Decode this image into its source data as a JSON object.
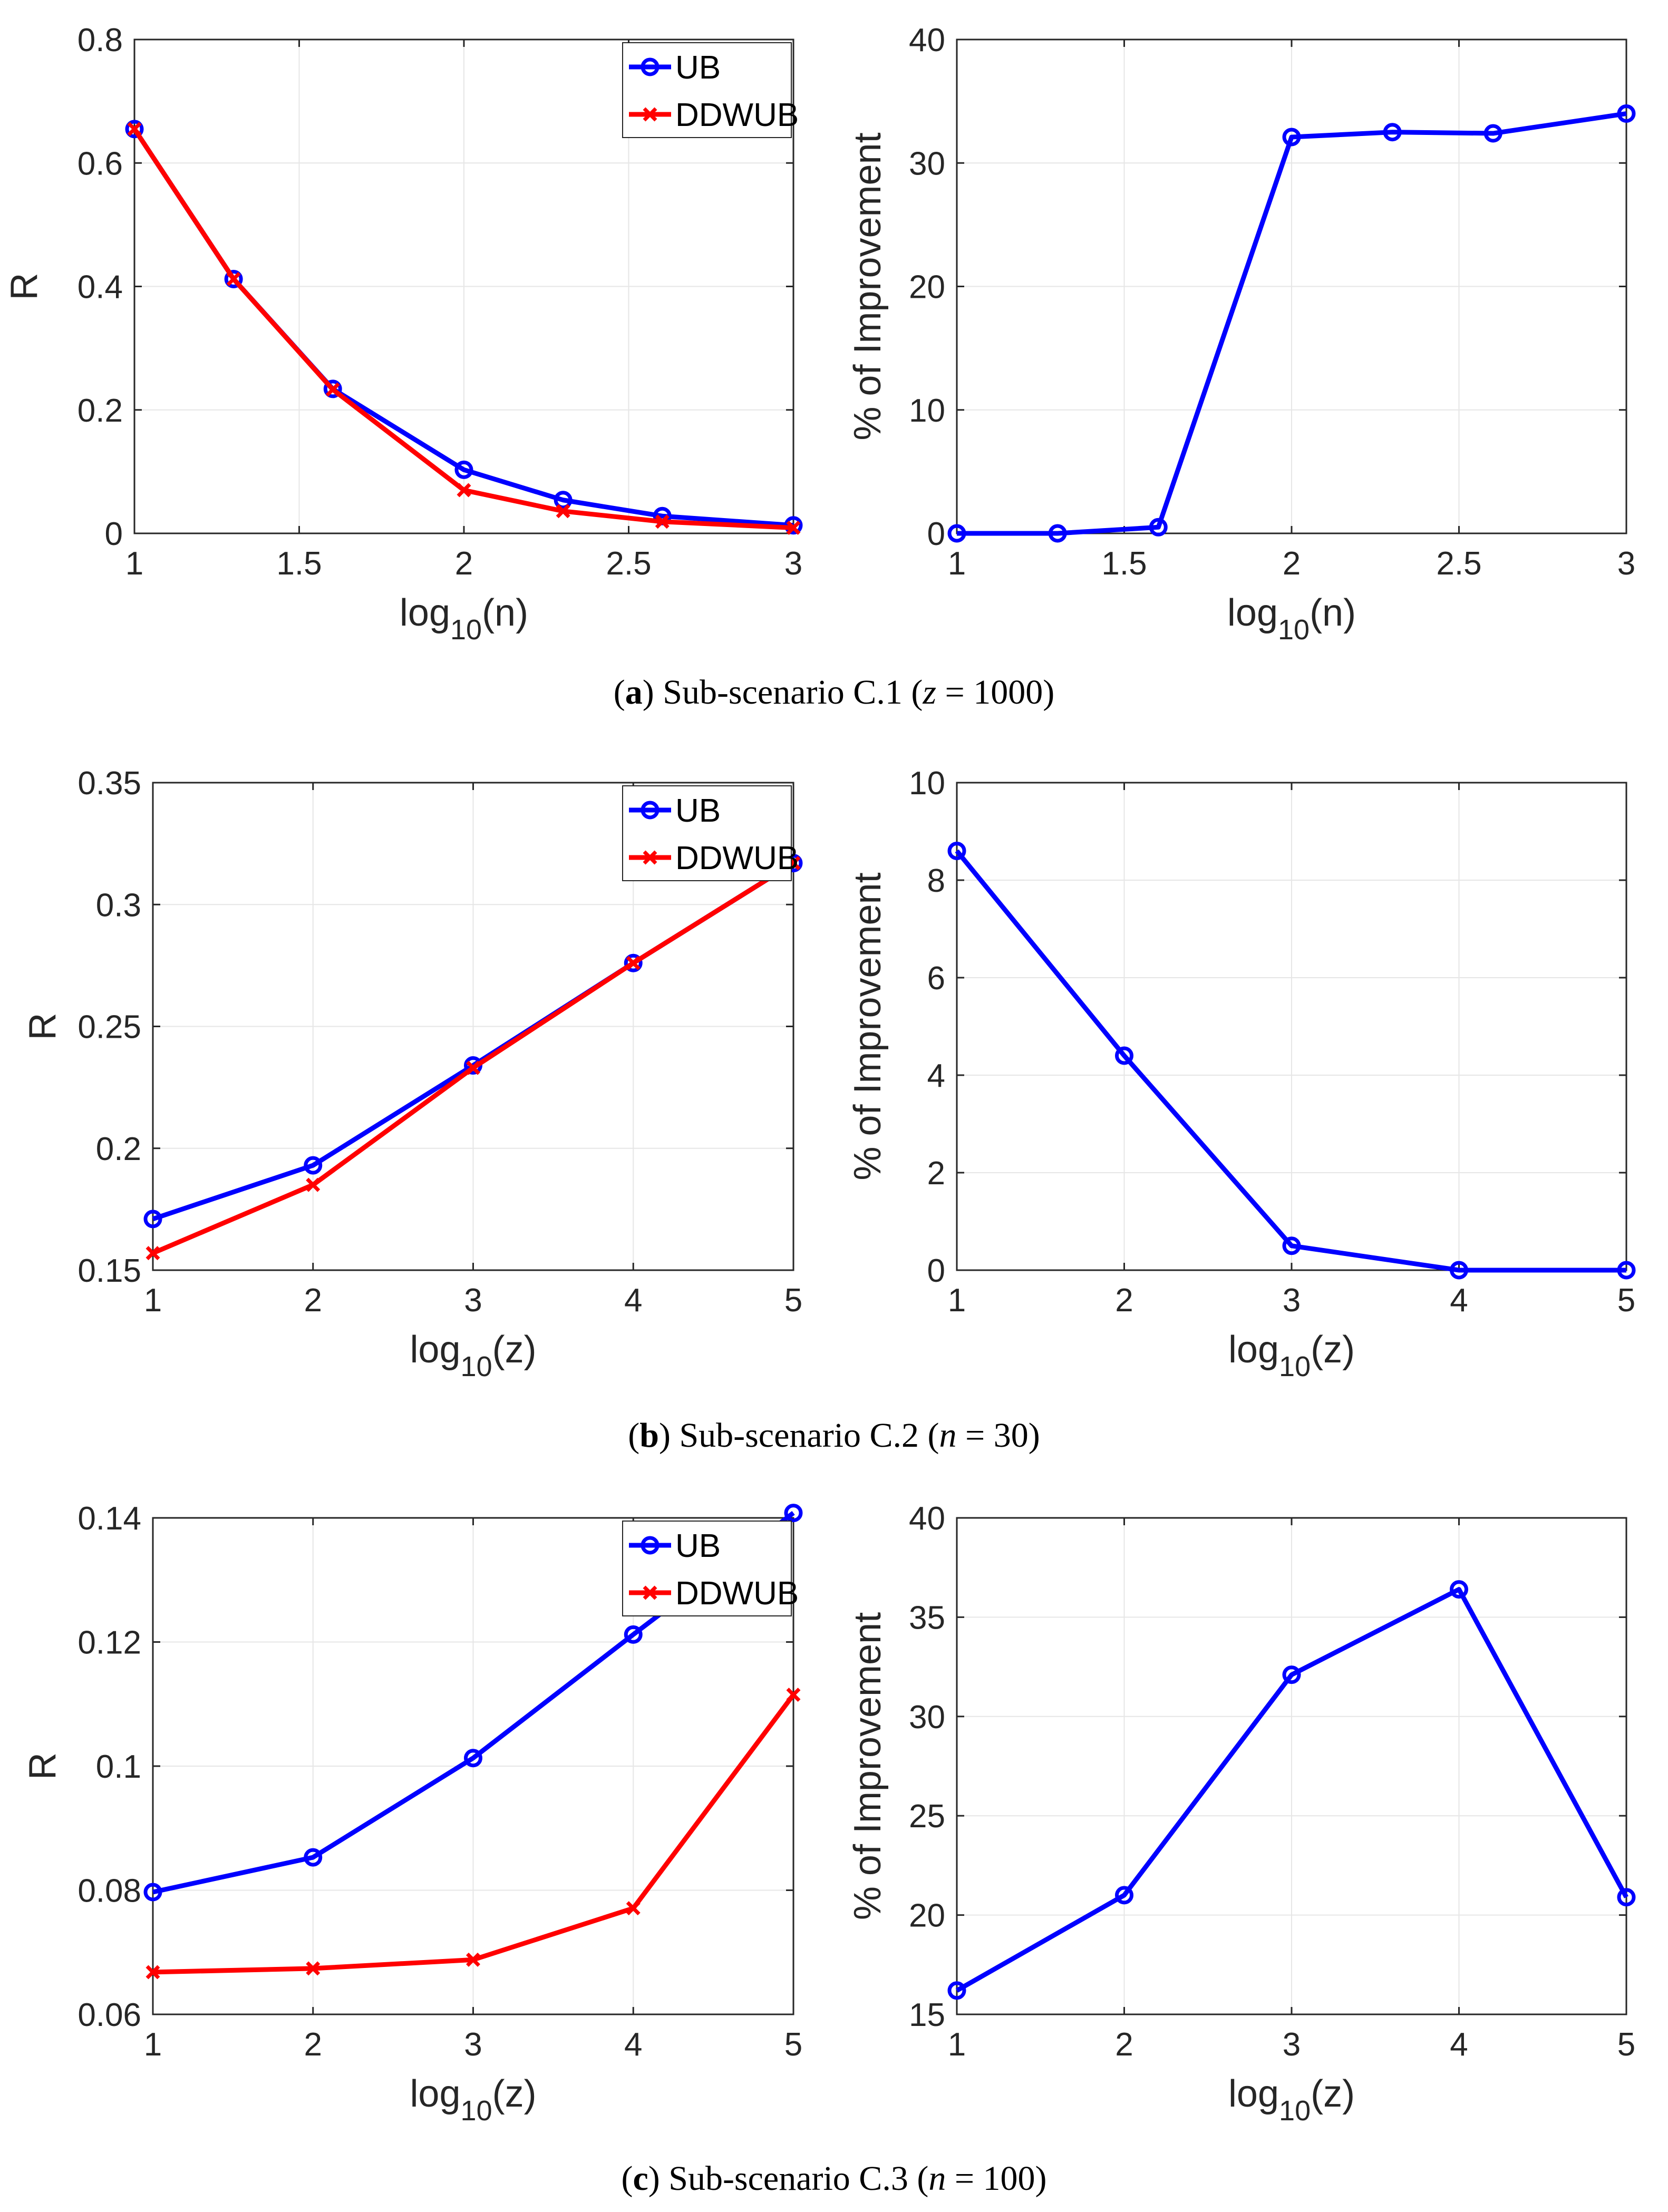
{
  "figure": {
    "captions": [
      {
        "letter": "a",
        "text": "Sub-scenario C.1",
        "var": "z",
        "value": "1000"
      },
      {
        "letter": "b",
        "text": "Sub-scenario C.2",
        "var": "n",
        "value": "30"
      },
      {
        "letter": "c",
        "text": "Sub-scenario C.3",
        "var": "n",
        "value": "100"
      }
    ]
  },
  "colors": {
    "ub": "#0000ff",
    "ddwub": "#ff0000",
    "axis": "#262626",
    "grid": "#e6e6e6"
  },
  "chart_data": [
    {
      "id": "a-left",
      "type": "line",
      "ylabel": "R",
      "xlabel": {
        "base": "log",
        "sub": "10",
        "arg": "(n)"
      },
      "xlim": [
        1,
        3
      ],
      "ylim": [
        0,
        0.8
      ],
      "xticks": [
        1,
        1.5,
        2,
        2.5,
        3
      ],
      "xtick_labels": [
        "1",
        "1.5",
        "2",
        "2.5",
        "3"
      ],
      "yticks": [
        0,
        0.2,
        0.4,
        0.6,
        0.8
      ],
      "ytick_labels": [
        "0",
        "0.2",
        "0.4",
        "0.6",
        "0.8"
      ],
      "legend": {
        "position": "top-right",
        "entries": [
          "UB",
          "DDWUB"
        ]
      },
      "series": [
        {
          "name": "UB",
          "marker": "circle",
          "x": [
            1,
            1.301,
            1.602,
            2,
            2.301,
            2.602,
            3
          ],
          "y": [
            0.655,
            0.412,
            0.234,
            0.103,
            0.054,
            0.028,
            0.013
          ]
        },
        {
          "name": "DDWUB",
          "marker": "x",
          "x": [
            1,
            1.301,
            1.602,
            2,
            2.301,
            2.602,
            3
          ],
          "y": [
            0.655,
            0.412,
            0.233,
            0.07,
            0.036,
            0.019,
            0.009
          ]
        }
      ]
    },
    {
      "id": "a-right",
      "type": "line",
      "ylabel": "% of Improvement",
      "xlabel": {
        "base": "log",
        "sub": "10",
        "arg": "(n)"
      },
      "xlim": [
        1,
        3
      ],
      "ylim": [
        0,
        40
      ],
      "xticks": [
        1,
        1.5,
        2,
        2.5,
        3
      ],
      "xtick_labels": [
        "1",
        "1.5",
        "2",
        "2.5",
        "3"
      ],
      "yticks": [
        0,
        10,
        20,
        30,
        40
      ],
      "ytick_labels": [
        "0",
        "10",
        "20",
        "30",
        "40"
      ],
      "series": [
        {
          "name": "Improvement",
          "marker": "circle",
          "x": [
            1,
            1.301,
            1.602,
            2,
            2.301,
            2.602,
            3
          ],
          "y": [
            0,
            0,
            0.5,
            32.1,
            32.5,
            32.4,
            34.0
          ]
        }
      ]
    },
    {
      "id": "b-left",
      "type": "line",
      "ylabel": "R",
      "xlabel": {
        "base": "log",
        "sub": "10",
        "arg": "(z)"
      },
      "xlim": [
        1,
        5
      ],
      "ylim": [
        0.15,
        0.35
      ],
      "xticks": [
        1,
        2,
        3,
        4,
        5
      ],
      "xtick_labels": [
        "1",
        "2",
        "3",
        "4",
        "5"
      ],
      "yticks": [
        0.15,
        0.2,
        0.25,
        0.3,
        0.35
      ],
      "ytick_labels": [
        "0.15",
        "0.2",
        "0.25",
        "0.3",
        "0.35"
      ],
      "legend": {
        "position": "top-right",
        "entries": [
          "UB",
          "DDWUB"
        ]
      },
      "series": [
        {
          "name": "UB",
          "marker": "circle",
          "x": [
            1,
            2,
            3,
            4,
            5
          ],
          "y": [
            0.171,
            0.193,
            0.234,
            0.276,
            0.317
          ]
        },
        {
          "name": "DDWUB",
          "marker": "x",
          "x": [
            1,
            2,
            3,
            4,
            5
          ],
          "y": [
            0.157,
            0.185,
            0.233,
            0.276,
            0.317
          ]
        }
      ]
    },
    {
      "id": "b-right",
      "type": "line",
      "ylabel": "% of Improvement",
      "xlabel": {
        "base": "log",
        "sub": "10",
        "arg": "(z)"
      },
      "xlim": [
        1,
        5
      ],
      "ylim": [
        0,
        10
      ],
      "xticks": [
        1,
        2,
        3,
        4,
        5
      ],
      "xtick_labels": [
        "1",
        "2",
        "3",
        "4",
        "5"
      ],
      "yticks": [
        0,
        2,
        4,
        6,
        8,
        10
      ],
      "ytick_labels": [
        "0",
        "2",
        "4",
        "6",
        "8",
        "10"
      ],
      "series": [
        {
          "name": "Improvement",
          "marker": "circle",
          "x": [
            1,
            2,
            3,
            4,
            5
          ],
          "y": [
            8.6,
            4.4,
            0.5,
            0,
            0
          ]
        }
      ]
    },
    {
      "id": "c-left",
      "type": "line",
      "ylabel": "R",
      "xlabel": {
        "base": "log",
        "sub": "10",
        "arg": "(z)"
      },
      "xlim": [
        1,
        5
      ],
      "ylim": [
        0.06,
        0.14
      ],
      "xticks": [
        1,
        2,
        3,
        4,
        5
      ],
      "xtick_labels": [
        "1",
        "2",
        "3",
        "4",
        "5"
      ],
      "yticks": [
        0.06,
        0.08,
        0.1,
        0.12,
        0.14
      ],
      "ytick_labels": [
        "0.06",
        "0.08",
        "0.1",
        "0.12",
        "0.14"
      ],
      "legend": {
        "position": "top-right",
        "entries": [
          "UB",
          "DDWUB"
        ]
      },
      "series": [
        {
          "name": "UB",
          "marker": "circle",
          "x": [
            1,
            2,
            3,
            4,
            5
          ],
          "y": [
            0.0797,
            0.0853,
            0.1013,
            0.1212,
            0.1408
          ]
        },
        {
          "name": "DDWUB",
          "marker": "x",
          "x": [
            1,
            2,
            3,
            4,
            5
          ],
          "y": [
            0.0668,
            0.0674,
            0.0688,
            0.0771,
            0.1115
          ]
        }
      ]
    },
    {
      "id": "c-right",
      "type": "line",
      "ylabel": "% of Improvement",
      "xlabel": {
        "base": "log",
        "sub": "10",
        "arg": "(z)"
      },
      "xlim": [
        1,
        5
      ],
      "ylim": [
        15,
        40
      ],
      "xticks": [
        1,
        2,
        3,
        4,
        5
      ],
      "xtick_labels": [
        "1",
        "2",
        "3",
        "4",
        "5"
      ],
      "yticks": [
        15,
        20,
        25,
        30,
        35,
        40
      ],
      "ytick_labels": [
        "15",
        "20",
        "25",
        "30",
        "35",
        "40"
      ],
      "series": [
        {
          "name": "Improvement",
          "marker": "circle",
          "x": [
            1,
            2,
            3,
            4,
            5
          ],
          "y": [
            16.2,
            21.0,
            32.1,
            36.4,
            20.9
          ]
        }
      ]
    }
  ]
}
